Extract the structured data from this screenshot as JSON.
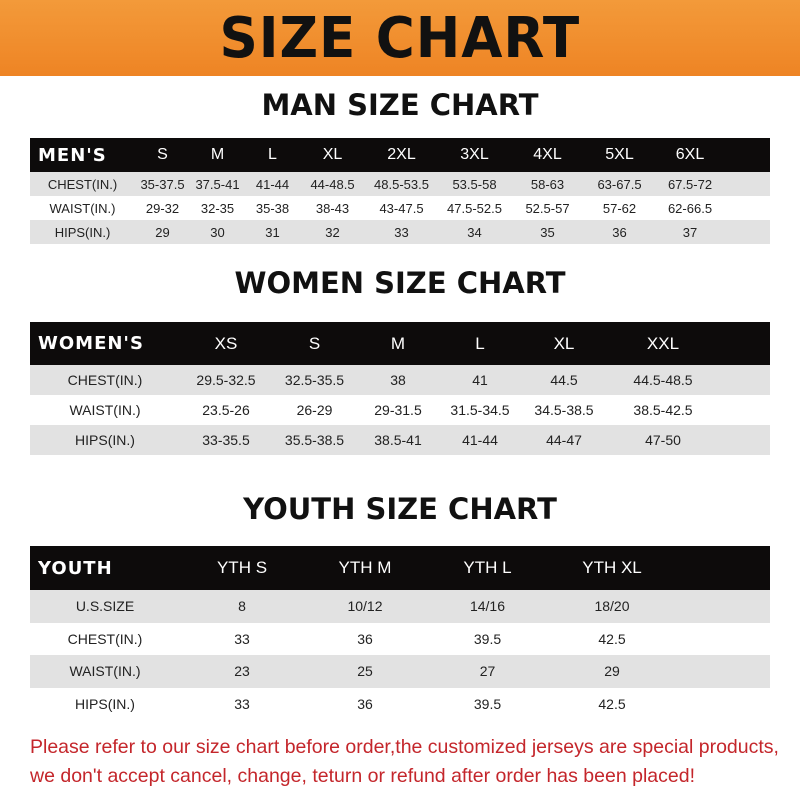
{
  "banner": {
    "title": "SIZE CHART",
    "color": "#f08a28"
  },
  "men": {
    "title": "MAN SIZE CHART",
    "headers": [
      "MEN'S",
      "S",
      "M",
      "L",
      "XL",
      "2XL",
      "3XL",
      "4XL",
      "5XL",
      "6XL"
    ],
    "rows": [
      [
        "CHEST(IN.)",
        "35-37.5",
        "37.5-41",
        "41-44",
        "44-48.5",
        "48.5-53.5",
        "53.5-58",
        "58-63",
        "63-67.5",
        "67.5-72"
      ],
      [
        "WAIST(IN.)",
        "29-32",
        "32-35",
        "35-38",
        "38-43",
        "43-47.5",
        "47.5-52.5",
        "52.5-57",
        "57-62",
        "62-66.5"
      ],
      [
        "HIPS(IN.)",
        "29",
        "30",
        "31",
        "32",
        "33",
        "34",
        "35",
        "36",
        "37"
      ]
    ]
  },
  "women": {
    "title": "WOMEN SIZE CHART",
    "headers": [
      "WOMEN'S",
      "XS",
      "S",
      "M",
      "L",
      "XL",
      "XXL"
    ],
    "rows": [
      [
        "CHEST(IN.)",
        "29.5-32.5",
        "32.5-35.5",
        "38",
        "41",
        "44.5",
        "44.5-48.5"
      ],
      [
        "WAIST(IN.)",
        "23.5-26",
        "26-29",
        "29-31.5",
        "31.5-34.5",
        "34.5-38.5",
        "38.5-42.5"
      ],
      [
        "HIPS(IN.)",
        "33-35.5",
        "35.5-38.5",
        "38.5-41",
        "41-44",
        "44-47",
        "47-50"
      ]
    ]
  },
  "youth": {
    "title": "YOUTH SIZE CHART",
    "headers": [
      "YOUTH",
      "YTH S",
      "YTH M",
      "YTH L",
      "YTH XL"
    ],
    "rows": [
      [
        "U.S.SIZE",
        "8",
        "10/12",
        "14/16",
        "18/20"
      ],
      [
        "CHEST(IN.)",
        "33",
        "36",
        "39.5",
        "42.5"
      ],
      [
        "WAIST(IN.)",
        "23",
        "25",
        "27",
        "29"
      ],
      [
        "HIPS(IN.)",
        "33",
        "36",
        "39.5",
        "42.5"
      ]
    ]
  },
  "note": {
    "line1": "Please refer to our size chart before order,the customized jerseys are special products,",
    "line2": "we don't accept cancel, change, teturn or refund after order has been placed!",
    "color": "#c4262b"
  }
}
